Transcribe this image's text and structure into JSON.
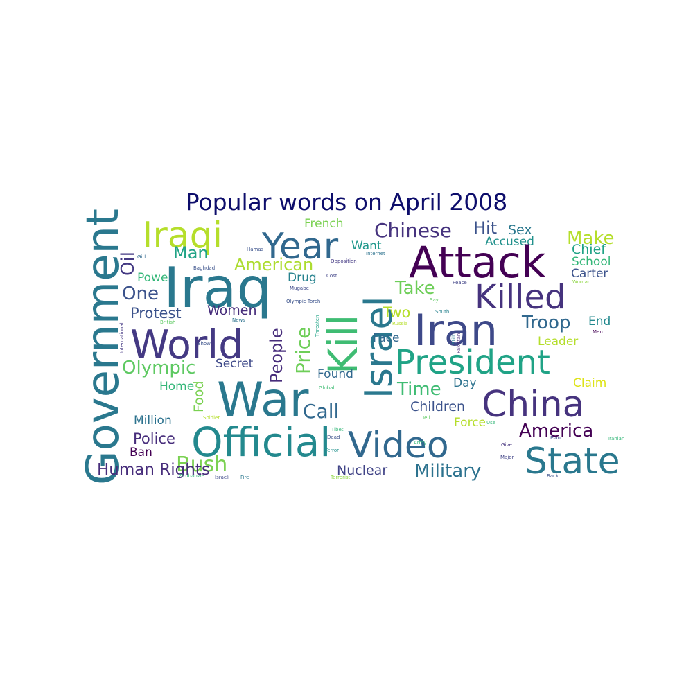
{
  "title": "Popular words on April 2008",
  "words": [
    {
      "text": "Government",
      "color": "#2a788e"
    },
    {
      "text": "Oil",
      "color": "#443983"
    },
    {
      "text": "Iraqi",
      "color": "#b5de2b"
    },
    {
      "text": "Year",
      "color": "#31688e"
    },
    {
      "text": "French",
      "color": "#7ad151"
    },
    {
      "text": "Chinese",
      "color": "#46337e"
    },
    {
      "text": "Hit",
      "color": "#3b528b"
    },
    {
      "text": "Sex",
      "color": "#2a788e"
    },
    {
      "text": "Make",
      "color": "#b5de2b"
    },
    {
      "text": "Chief",
      "color": "#20a386"
    },
    {
      "text": "Accused",
      "color": "#21918c"
    },
    {
      "text": "Want",
      "color": "#1f988b"
    },
    {
      "text": "Hamas",
      "color": "#3b528b"
    },
    {
      "text": "Internet",
      "color": "#2c728e"
    },
    {
      "text": "Opposition",
      "color": "#443983"
    },
    {
      "text": "Man",
      "color": "#20a386"
    },
    {
      "text": "American",
      "color": "#addc30"
    },
    {
      "text": "Attack",
      "color": "#440154"
    },
    {
      "text": "School",
      "color": "#35b779"
    },
    {
      "text": "Girl",
      "color": "#31688e"
    },
    {
      "text": "Baghdad",
      "color": "#3b528b"
    },
    {
      "text": "Carter",
      "color": "#3b528b"
    },
    {
      "text": "Power",
      "color": "#35b779"
    },
    {
      "text": "Iraq",
      "color": "#2a788e"
    },
    {
      "text": "Drug",
      "color": "#26828e"
    },
    {
      "text": "Cost",
      "color": "#414487"
    },
    {
      "text": "Take",
      "color": "#6ece58"
    },
    {
      "text": "Mugabe",
      "color": "#3e4989"
    },
    {
      "text": "Peace",
      "color": "#414487"
    },
    {
      "text": "Woman",
      "color": "#8fd744"
    },
    {
      "text": "One",
      "color": "#3b528b"
    },
    {
      "text": "Killed",
      "color": "#46337e"
    },
    {
      "text": "Israel",
      "color": "#2a788e"
    },
    {
      "text": "Kill",
      "color": "#3fbc73"
    },
    {
      "text": "Olympic Torch",
      "color": "#3b528b"
    },
    {
      "text": "Say",
      "color": "#5ec962"
    },
    {
      "text": "Protest",
      "color": "#3b528b"
    },
    {
      "text": "Women",
      "color": "#472d7b"
    },
    {
      "text": "Two",
      "color": "#b5de2b"
    },
    {
      "text": "South",
      "color": "#26828e"
    },
    {
      "text": "Iran",
      "color": "#3e4989"
    },
    {
      "text": "International",
      "color": "#443983"
    },
    {
      "text": "British",
      "color": "#5ec962"
    },
    {
      "text": "News",
      "color": "#2c728e"
    },
    {
      "text": "Threaten",
      "color": "#20a386"
    },
    {
      "text": "Russia",
      "color": "#b5de2b"
    },
    {
      "text": "Troop",
      "color": "#31688e"
    },
    {
      "text": "End",
      "color": "#23898e"
    },
    {
      "text": "Men",
      "color": "#440154"
    },
    {
      "text": "World",
      "color": "#443983"
    },
    {
      "text": "Price",
      "color": "#6ece58"
    },
    {
      "text": "People",
      "color": "#472d7b"
    },
    {
      "text": "Face",
      "color": "#31688e"
    },
    {
      "text": "Still",
      "color": "#2a788e"
    },
    {
      "text": "Leader",
      "color": "#b5de2b"
    },
    {
      "text": "Show",
      "color": "#3b528b"
    },
    {
      "text": "President",
      "color": "#20a386"
    },
    {
      "text": "Olympic",
      "color": "#5ec962"
    },
    {
      "text": "Secret",
      "color": "#3e4989"
    },
    {
      "text": "Found",
      "color": "#31688e"
    },
    {
      "text": "Pakistan",
      "color": "#482878"
    },
    {
      "text": "Claim",
      "color": "#dde318"
    },
    {
      "text": "Time",
      "color": "#3fbc73"
    },
    {
      "text": "Day",
      "color": "#2c728e"
    },
    {
      "text": "War",
      "color": "#2a788e"
    },
    {
      "text": "Home",
      "color": "#35b779"
    },
    {
      "text": "Global",
      "color": "#3fbc73"
    },
    {
      "text": "China",
      "color": "#46337e"
    },
    {
      "text": "Food",
      "color": "#7ad151"
    },
    {
      "text": "Call",
      "color": "#31688e"
    },
    {
      "text": "Children",
      "color": "#3b528b"
    },
    {
      "text": "Soldier",
      "color": "#b5de2b"
    },
    {
      "text": "Tell",
      "color": "#5ec962"
    },
    {
      "text": "Million",
      "color": "#2c728e"
    },
    {
      "text": "Force",
      "color": "#b5de2b"
    },
    {
      "text": "Use",
      "color": "#35b779"
    },
    {
      "text": "America",
      "color": "#440154"
    },
    {
      "text": "Official",
      "color": "#23898e"
    },
    {
      "text": "Video",
      "color": "#31688e"
    },
    {
      "text": "Police",
      "color": "#472d7b"
    },
    {
      "text": "Tibet",
      "color": "#35b779"
    },
    {
      "text": "Dead",
      "color": "#3b528b"
    },
    {
      "text": "Army",
      "color": "#35b779"
    },
    {
      "text": "Give",
      "color": "#46337e"
    },
    {
      "text": "Plan",
      "color": "#3e4989"
    },
    {
      "text": "Iranian",
      "color": "#35b779"
    },
    {
      "text": "Ban",
      "color": "#440154"
    },
    {
      "text": "Terror",
      "color": "#21918c"
    },
    {
      "text": "Major",
      "color": "#414487"
    },
    {
      "text": "State",
      "color": "#2a788e"
    },
    {
      "text": "Bush",
      "color": "#7ad151"
    },
    {
      "text": "Human Rights",
      "color": "#472d7b"
    },
    {
      "text": "Nuclear",
      "color": "#414487"
    },
    {
      "text": "Military",
      "color": "#2c728e"
    },
    {
      "text": "Zimbabwe",
      "color": "#35b779"
    },
    {
      "text": "Israeli",
      "color": "#3e4989"
    },
    {
      "text": "Fire",
      "color": "#2a788e"
    },
    {
      "text": "Terrorist",
      "color": "#8fd744"
    },
    {
      "text": "Back",
      "color": "#3b528b"
    },
    {
      "text": "Rights Watch",
      "color": "#3e4989"
    }
  ]
}
